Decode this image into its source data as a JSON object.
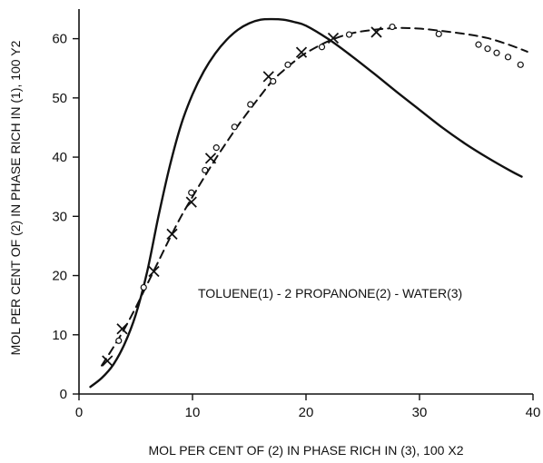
{
  "chart_data": {
    "type": "line",
    "xlabel": "MOL PER CENT OF (2) IN PHASE RICH IN (3), 100 X2",
    "ylabel": "MOL PER CENT OF (2) IN PHASE RICH IN (1), 100 Y2",
    "annotation": "TOLUENE(1) - 2 PROPANONE(2) - WATER(3)",
    "xlim": [
      0,
      40
    ],
    "ylim": [
      0,
      65
    ],
    "xticks": [
      0,
      10,
      20,
      30,
      40
    ],
    "yticks": [
      0,
      10,
      20,
      30,
      40,
      50,
      60
    ],
    "xtick_labels": [
      "0",
      "10",
      "20",
      "30",
      "40"
    ],
    "ytick_labels": [
      "0",
      "10",
      "20",
      "30",
      "40",
      "50",
      "60"
    ],
    "grid": false,
    "series": [
      {
        "style": "solid-line",
        "x": [
          1,
          2,
          3,
          4,
          5,
          6,
          7,
          8,
          9,
          10,
          11,
          12,
          13,
          14,
          15,
          16,
          17,
          18,
          19,
          20,
          22,
          24,
          26,
          28,
          30,
          32,
          34,
          36,
          38,
          39
        ],
        "y": [
          1.2,
          2.7,
          4.9,
          8.4,
          13.4,
          20.6,
          30,
          38.5,
          45.5,
          50.6,
          54.5,
          57.5,
          59.8,
          61.5,
          62.6,
          63.2,
          63.3,
          63.2,
          62.8,
          62.2,
          59.9,
          57.1,
          54.1,
          51,
          48,
          45,
          42.3,
          39.9,
          37.7,
          36.7
        ]
      },
      {
        "style": "dashed-line",
        "x": [
          2,
          3,
          4,
          5,
          6,
          7,
          8,
          9,
          10,
          11,
          12,
          13,
          14,
          15,
          16,
          17,
          18,
          19,
          20,
          22,
          24,
          26,
          28,
          30,
          32,
          34,
          36,
          38,
          39.5
        ],
        "y": [
          4.8,
          7.8,
          11,
          14.6,
          18.5,
          22.4,
          26.3,
          30,
          33.3,
          36.5,
          39.6,
          42.5,
          45.3,
          47.9,
          50.4,
          52.8,
          54.6,
          56.2,
          57.6,
          59.6,
          60.9,
          61.5,
          61.8,
          61.7,
          61.3,
          60.8,
          60.1,
          58.9,
          57.8
        ]
      }
    ],
    "markers_x": {
      "x": [
        2.5,
        3.8,
        6.6,
        8.2,
        9.9,
        11.6,
        16.7,
        19.6,
        22.4,
        26.2
      ],
      "y": [
        5.6,
        11,
        20.7,
        27,
        32.4,
        39.8,
        53.6,
        57.7,
        60.1,
        61.1
      ]
    },
    "markers_o": {
      "x": [
        3.5,
        5.7,
        9.9,
        11.1,
        12.1,
        13.7,
        15.1,
        17.1,
        18.4,
        21.4,
        23.8,
        27.6,
        31.7,
        35.2,
        36,
        36.8,
        37.8,
        38.9
      ],
      "y": [
        9,
        18,
        34,
        37.8,
        41.6,
        45.1,
        48.9,
        52.8,
        55.6,
        58.6,
        60.7,
        62,
        60.8,
        59,
        58.3,
        57.6,
        56.9,
        55.6
      ]
    }
  }
}
